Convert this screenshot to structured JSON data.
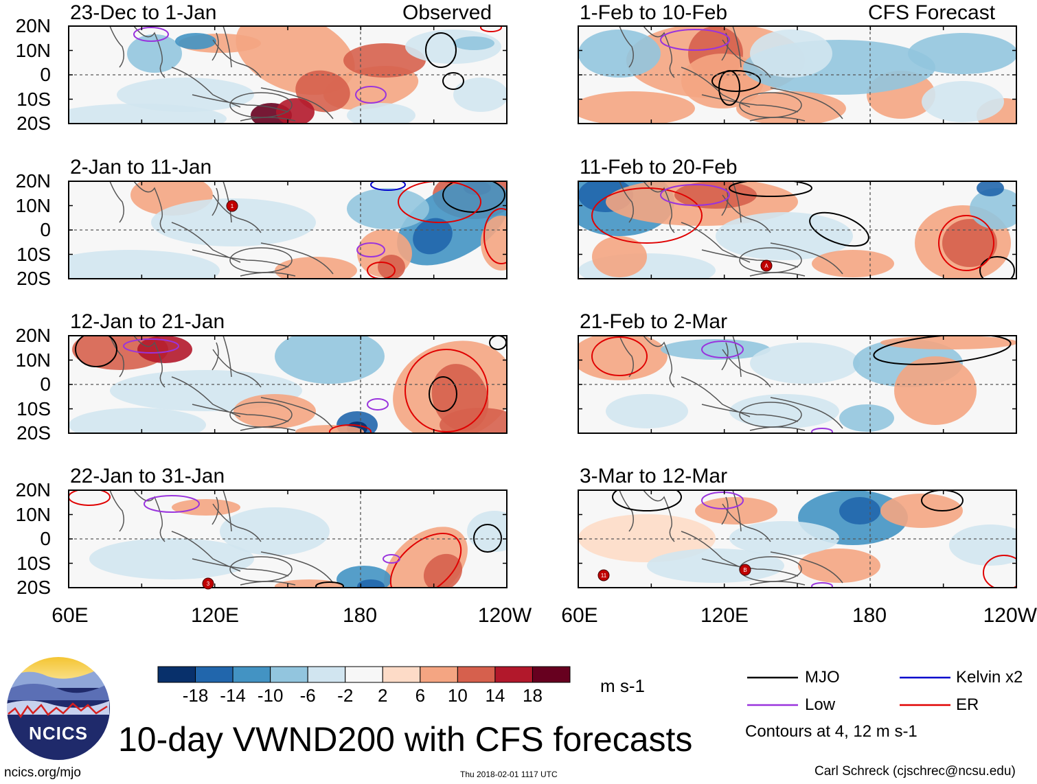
{
  "figure": {
    "title": "10-day VWND200 with CFS forecasts",
    "website": "ncics.org/mjo",
    "timestamp": "Thu 2018-02-01 1117 UTC",
    "author": "Carl Schreck (cjschrec@ncsu.edu)",
    "logo_text": "NCICS"
  },
  "columns": [
    {
      "tag": "Observed"
    },
    {
      "tag": "CFS Forecast"
    }
  ],
  "panels": [
    {
      "period": "23-Dec to 1-Jan",
      "source": "Observed"
    },
    {
      "period": "2-Jan to 11-Jan",
      "source": "Observed"
    },
    {
      "period": "12-Jan to 21-Jan",
      "source": "Observed"
    },
    {
      "period": "22-Jan to 31-Jan",
      "source": "Observed"
    },
    {
      "period": "1-Feb to 10-Feb",
      "source": "CFS Forecast"
    },
    {
      "period": "11-Feb to 20-Feb",
      "source": "CFS Forecast"
    },
    {
      "period": "21-Feb to 2-Mar",
      "source": "CFS Forecast"
    },
    {
      "period": "3-Mar to 12-Mar",
      "source": "CFS Forecast"
    }
  ],
  "axes": {
    "lat_ticks": [
      "20N",
      "10N",
      "0",
      "10S",
      "20S"
    ],
    "lon_ticks": [
      "60E",
      "120E",
      "180",
      "120W"
    ]
  },
  "colorbar": {
    "ticks": [
      "-18",
      "-14",
      "-10",
      "-6",
      "-2",
      "2",
      "6",
      "10",
      "14",
      "18"
    ],
    "colors": [
      "#08306b",
      "#2166ac",
      "#4393c3",
      "#92c5de",
      "#d1e5f0",
      "#f7f7f7",
      "#fddbc7",
      "#f4a582",
      "#d6604d",
      "#b2182b",
      "#67001f"
    ],
    "units": "m s-1"
  },
  "legend": {
    "items": [
      {
        "label": "MJO",
        "color": "#000000"
      },
      {
        "label": "Kelvin x2",
        "color": "#0000cc"
      },
      {
        "label": "Low",
        "color": "#9933dd"
      },
      {
        "label": "ER",
        "color": "#e00000"
      }
    ],
    "contour_note": "Contours at 4, 12 m s-1"
  },
  "storm_markers": [
    "1",
    "A",
    "3",
    "11",
    "B"
  ],
  "style": {
    "land_outline": "#555555",
    "zero_line": "#555555"
  }
}
